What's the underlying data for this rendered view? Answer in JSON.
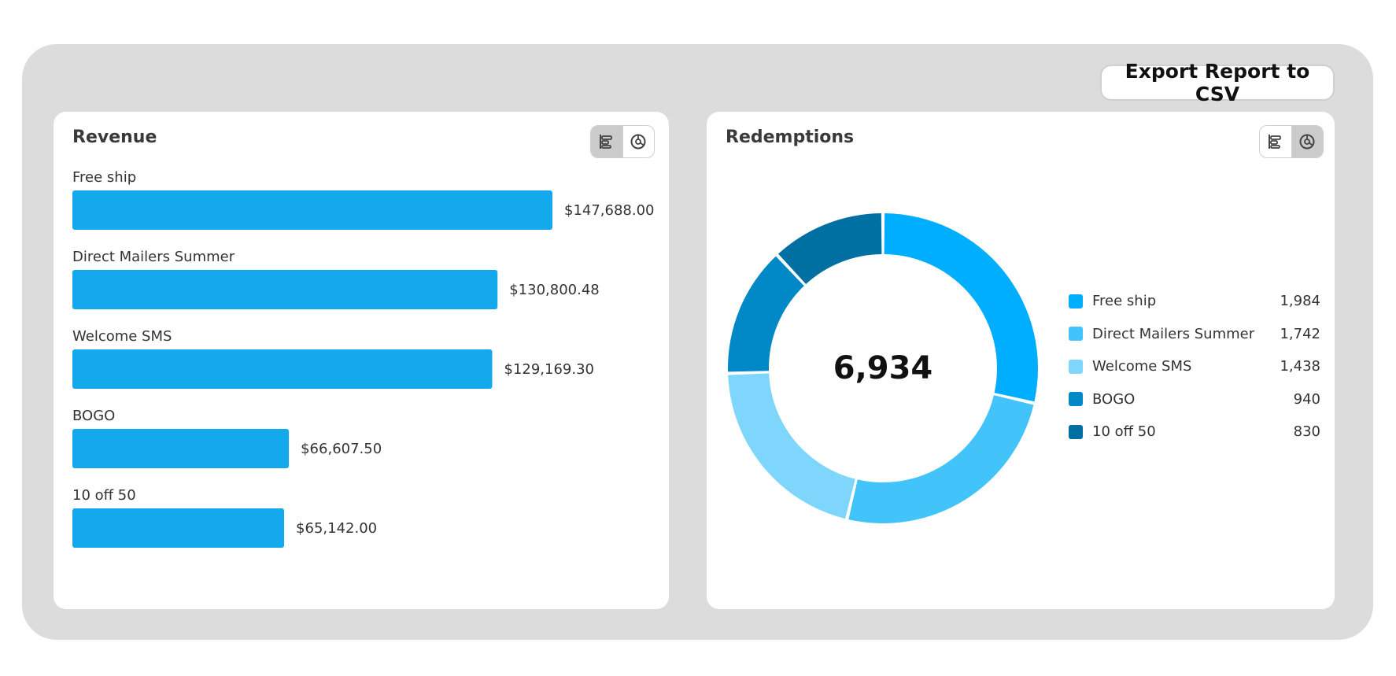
{
  "export": {
    "label": "Export Report to CSV"
  },
  "revenue": {
    "title": "Revenue",
    "bar_color": "#14a8ec"
  },
  "redemptions": {
    "title": "Redemptions",
    "total": "6,934"
  },
  "toggle": {
    "bar_icon": "bar-chart-icon",
    "pie_icon": "pie-chart-icon"
  },
  "chart_data": [
    {
      "type": "bar",
      "orientation": "horizontal",
      "title": "Revenue",
      "categories": [
        "Free ship",
        "Direct Mailers Summer",
        "Welcome SMS",
        "BOGO",
        "10 off 50"
      ],
      "values": [
        147688.0,
        130800.48,
        129169.3,
        66607.5,
        65142.0
      ],
      "value_labels": [
        "$147,688.00",
        "$130,800.48",
        "$129,169.30",
        "$66,607.50",
        "$65,142.00"
      ],
      "grid": false
    },
    {
      "type": "pie",
      "variant": "donut",
      "title": "Redemptions",
      "center_label": "6,934",
      "categories": [
        "Free ship",
        "Direct Mailers Summer",
        "Welcome SMS",
        "BOGO",
        "10 off 50"
      ],
      "values": [
        1984,
        1742,
        1438,
        940,
        830
      ],
      "value_labels": [
        "1,984",
        "1,742",
        "1,438",
        "940",
        "830"
      ],
      "colors": [
        "#00aeff",
        "#42c4fb",
        "#7fd6fd",
        "#0089c6",
        "#0070a3"
      ],
      "legend": "right"
    }
  ]
}
